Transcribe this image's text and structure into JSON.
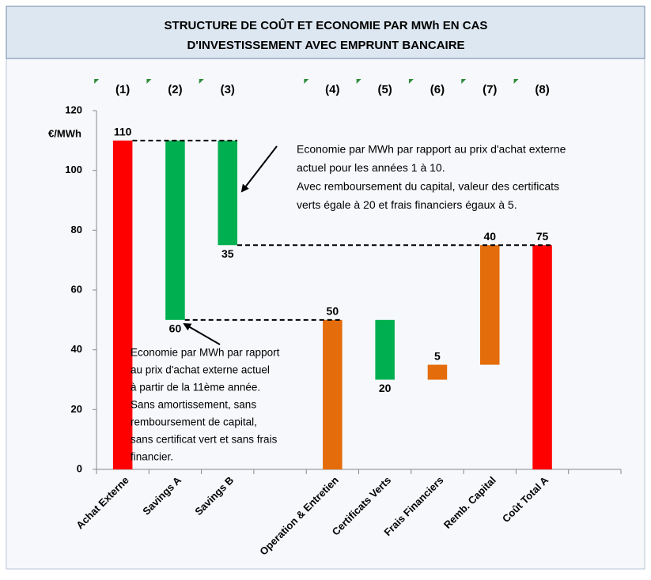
{
  "chart_data": {
    "type": "waterfall",
    "title_lines": [
      "STRUCTURE DE COÛT ET ECONOMIE PAR MWh EN CAS",
      "D'INVESTISSEMENT AVEC EMPRUNT BANCAIRE"
    ],
    "y_unit": "€/MWh",
    "categories": [
      "Achat Externe",
      "Savings A",
      "Savings B",
      null,
      "Operation & Entretien",
      "Certificats Verts",
      "Frais Financiers",
      "Remb. Capital",
      "Coût Total A",
      null
    ],
    "column_numbers": [
      "(1)",
      "(2)",
      "(3)",
      null,
      "(4)",
      "(5)",
      "(6)",
      "(7)",
      "(8)",
      null
    ],
    "values": [
      110,
      60,
      35,
      null,
      50,
      20,
      5,
      40,
      75,
      null
    ],
    "measure": [
      "total",
      "decrease",
      "decrease",
      null,
      "total",
      "decrease",
      "increase",
      "increase",
      "total",
      null
    ],
    "from": [
      null,
      0,
      0,
      null,
      null,
      4,
      5,
      6,
      null,
      null
    ],
    "colors": [
      "#ff0000",
      "#00b050",
      "#00b050",
      null,
      "#e46c0a",
      "#00b050",
      "#e46c0a",
      "#e46c0a",
      "#ff0000",
      null
    ],
    "ylim": [
      0,
      120
    ],
    "yticks": [
      0,
      20,
      40,
      60,
      80,
      100,
      120
    ],
    "annotations": [
      {
        "lines": [
          "Economie par MWh par rapport au prix d'achat externe",
          "actuel pour les années 1 à 10.",
          "Avec remboursement du capital, valeur des certificats",
          "verts égale à 20 et frais financiers égaux à 5."
        ]
      },
      {
        "lines": [
          "Economie par MWh par rapport",
          "au prix d'achat externe actuel",
          "à partir de la 11ème année.",
          "Sans amortissement, sans",
          "remboursement  de capital,",
          "sans certificat vert et sans frais",
          "financier."
        ]
      }
    ]
  }
}
